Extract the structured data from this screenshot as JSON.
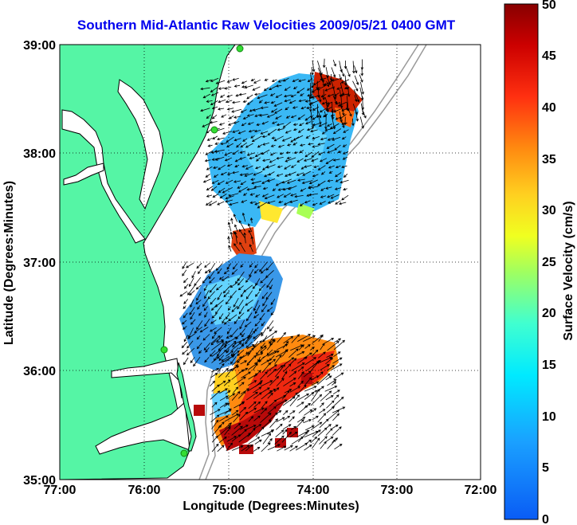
{
  "title": "Southern Mid-Atlantic Raw Velocities 2009/05/21 0400 GMT",
  "xlabel": "Longitude (Degrees:Minutes)",
  "ylabel": "Latitude (Degrees:Minutes)",
  "colorbar_label": "Surface Velocity (cm/s)",
  "x_ticks": [
    "77:00",
    "76:00",
    "75:00",
    "74:00",
    "73:00",
    "72:00"
  ],
  "y_ticks": [
    "39:00",
    "38:00",
    "37:00",
    "36:00",
    "35:00"
  ],
  "colorbar_ticks": [
    "50",
    "45",
    "40",
    "35",
    "30",
    "25",
    "20",
    "15",
    "10",
    "5",
    "0"
  ],
  "colors": {
    "land": "#55f5a5",
    "coastline": "#000000",
    "bathymetry": "#999999",
    "title": "#0000ee",
    "station": "#33dd33"
  },
  "map": {
    "lon_range": [
      -77,
      -72
    ],
    "lat_range": [
      35,
      39
    ],
    "grid": true,
    "colorbar_range": [
      0,
      50
    ]
  }
}
